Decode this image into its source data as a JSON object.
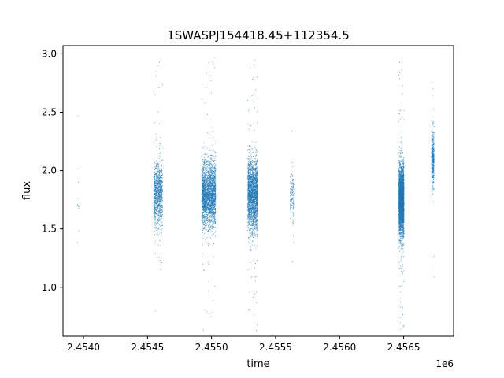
{
  "chart_data": {
    "type": "scatter",
    "title": "1SWASPJ154418.45+112354.5",
    "xlabel": "time",
    "ylabel": "flux",
    "x_offset_label": "1e6",
    "xlim": [
      2453840,
      2456890
    ],
    "ylim": [
      0.58,
      3.07
    ],
    "x_ticks": [
      2454000,
      2454500,
      2455000,
      2455500,
      2456000,
      2456500
    ],
    "x_tick_labels": [
      "2.4540",
      "2.4545",
      "2.4550",
      "2.4555",
      "2.4560",
      "2.4565"
    ],
    "y_ticks": [
      1.0,
      1.5,
      2.0,
      2.5,
      3.0
    ],
    "y_tick_labels": [
      "1.0",
      "1.5",
      "2.0",
      "2.5",
      "3.0"
    ],
    "grid": false,
    "marker_color": "#1f77b4",
    "series": [
      {
        "clusters": [
          {
            "x_start": 2453950,
            "x_end": 2453960,
            "y_center": 1.8,
            "y_spread": 0.3,
            "points": 12
          },
          {
            "x_start": 2454545,
            "x_end": 2454615,
            "y_center": 1.8,
            "y_spread": 0.28,
            "points": 1100
          },
          {
            "x_start": 2454920,
            "x_end": 2455030,
            "y_center": 1.8,
            "y_spread": 0.28,
            "points": 2600
          },
          {
            "x_start": 2455280,
            "x_end": 2455360,
            "y_center": 1.8,
            "y_spread": 0.3,
            "points": 2400
          },
          {
            "x_start": 2455610,
            "x_end": 2455640,
            "y_center": 1.8,
            "y_spread": 0.22,
            "points": 150
          },
          {
            "x_start": 2456460,
            "x_end": 2456500,
            "y_center": 1.75,
            "y_spread": 0.3,
            "points": 3000
          },
          {
            "x_start": 2456715,
            "x_end": 2456735,
            "y_center": 2.1,
            "y_spread": 0.25,
            "points": 500
          }
        ]
      }
    ]
  }
}
